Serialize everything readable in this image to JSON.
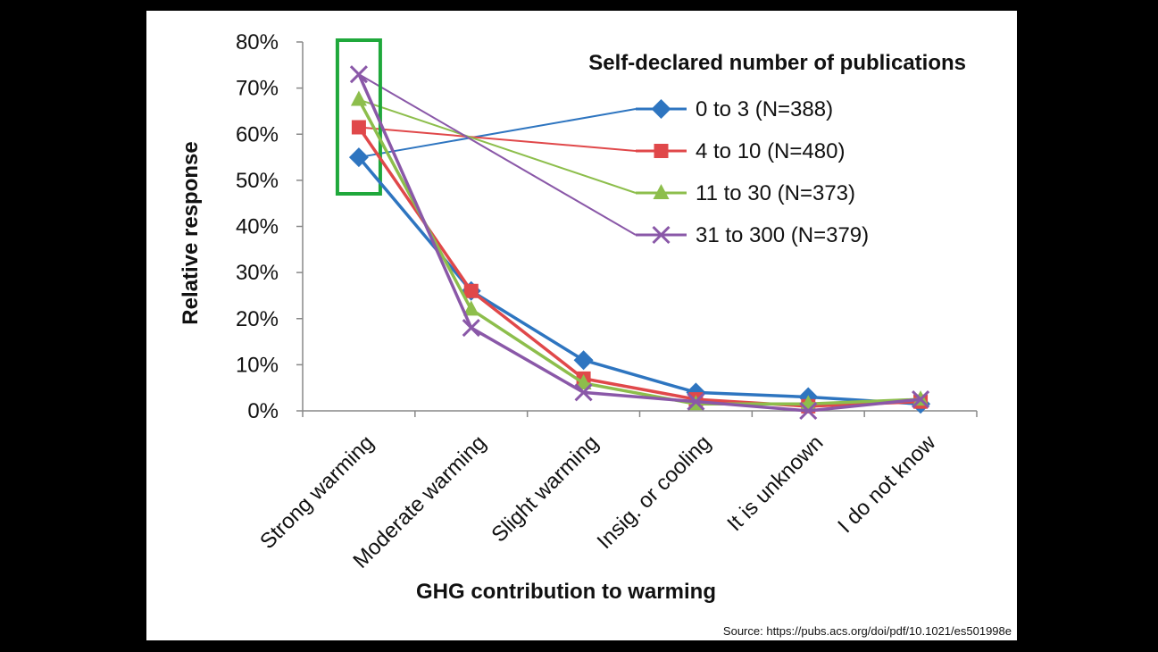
{
  "chart_data": {
    "type": "line",
    "categories": [
      "Strong warming",
      "Moderate warming",
      "Slight warming",
      "Insig. or cooling",
      "It is unknown",
      "I do not know"
    ],
    "ylabel": "Relative response",
    "xlabel": "GHG contribution to warming",
    "ylim": [
      0,
      80
    ],
    "yticks": [
      "0%",
      "10%",
      "20%",
      "30%",
      "40%",
      "50%",
      "60%",
      "70%",
      "80%"
    ],
    "legend_title": "Self-declared number of publications",
    "legend_position": "top-right",
    "grid": false,
    "highlight": "Strong warming",
    "highlight_color": "#1FA83B",
    "series": [
      {
        "name": "0 to 3 (N=388)",
        "color": "#2E75C0",
        "marker": "diamond",
        "values": [
          55,
          26,
          11,
          4,
          3,
          1.5
        ]
      },
      {
        "name": "4 to 10 (N=480)",
        "color": "#E0484A",
        "marker": "square",
        "values": [
          61.5,
          26,
          7,
          2.5,
          1,
          2
        ]
      },
      {
        "name": "11 to 30 (N=373)",
        "color": "#8DBE4C",
        "marker": "triangle",
        "values": [
          67.5,
          22,
          6,
          1.5,
          1.5,
          2.5
        ]
      },
      {
        "name": "31 to 300 (N=379)",
        "color": "#8A58A8",
        "marker": "x",
        "values": [
          73,
          18,
          4,
          2,
          0,
          2.5
        ]
      }
    ]
  },
  "source": "Source: https://pubs.acs.org/doi/pdf/10.1021/es501998e"
}
